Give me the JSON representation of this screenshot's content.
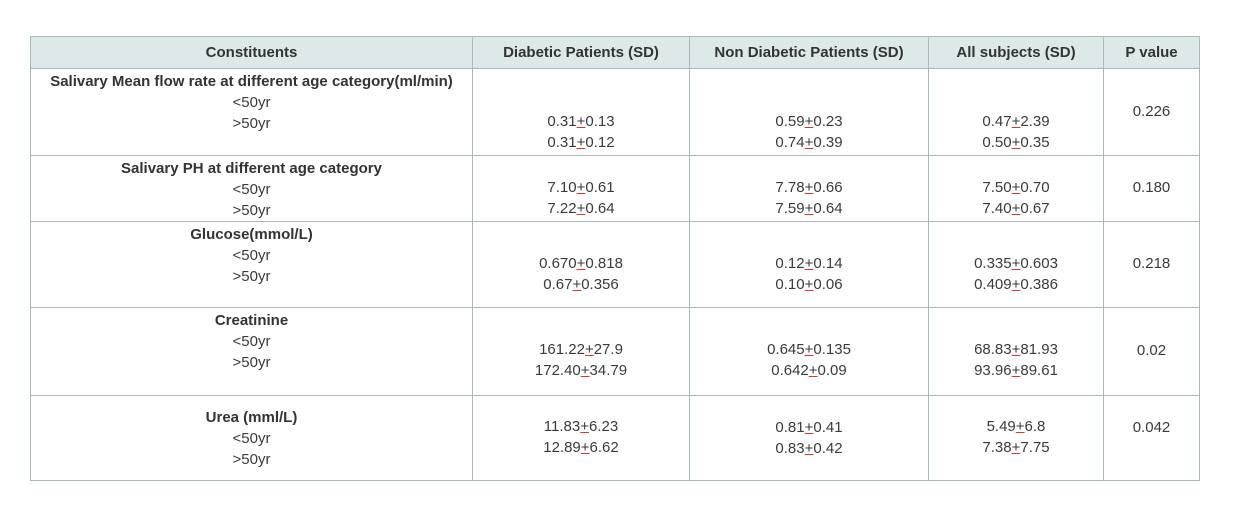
{
  "table": {
    "headers": [
      "Constituents",
      "Diabetic Patients (SD)",
      "Non Diabetic Patients (SD)",
      "All subjects (SD)",
      "P value"
    ],
    "sub_labels": [
      "<50yr",
      ">50yr"
    ],
    "rows": [
      {
        "name": "Salivary Mean flow rate at different age category(ml/min)",
        "diabetic": [
          "0.31+0.13",
          "0.31+0.12"
        ],
        "non_diabetic": [
          "0.59+0.23",
          "0.74+0.39"
        ],
        "all": [
          "0.47+2.39",
          "0.50+0.35"
        ],
        "p": "0.226"
      },
      {
        "name": "Salivary PH at different age category",
        "diabetic": [
          "7.10+0.61",
          "7.22+0.64"
        ],
        "non_diabetic": [
          "7.78+0.66",
          "7.59+0.64"
        ],
        "all": [
          "7.50+0.70",
          "7.40+0.67"
        ],
        "p": "0.180"
      },
      {
        "name": "Glucose(mmol/L)",
        "diabetic": [
          "0.670+0.818",
          "0.67+0.356"
        ],
        "non_diabetic": [
          "0.12+0.14",
          "0.10+0.06"
        ],
        "all": [
          "0.335+0.603",
          "0.409+0.386"
        ],
        "p": "0.218"
      },
      {
        "name": "Creatinine",
        "diabetic": [
          "161.22+27.9",
          "172.40+34.79"
        ],
        "non_diabetic": [
          "0.645+0.135",
          "0.642+0.09"
        ],
        "all": [
          "68.83+81.93",
          "93.96+89.61"
        ],
        "p": "0.02"
      },
      {
        "name": "Urea (mml/L)",
        "diabetic": [
          "11.83+6.23",
          "12.89+6.62"
        ],
        "non_diabetic": [
          "0.81+0.41",
          "0.83+0.42"
        ],
        "all": [
          "5.49+6.8",
          "7.38+7.75"
        ],
        "p": "0.042"
      }
    ]
  }
}
